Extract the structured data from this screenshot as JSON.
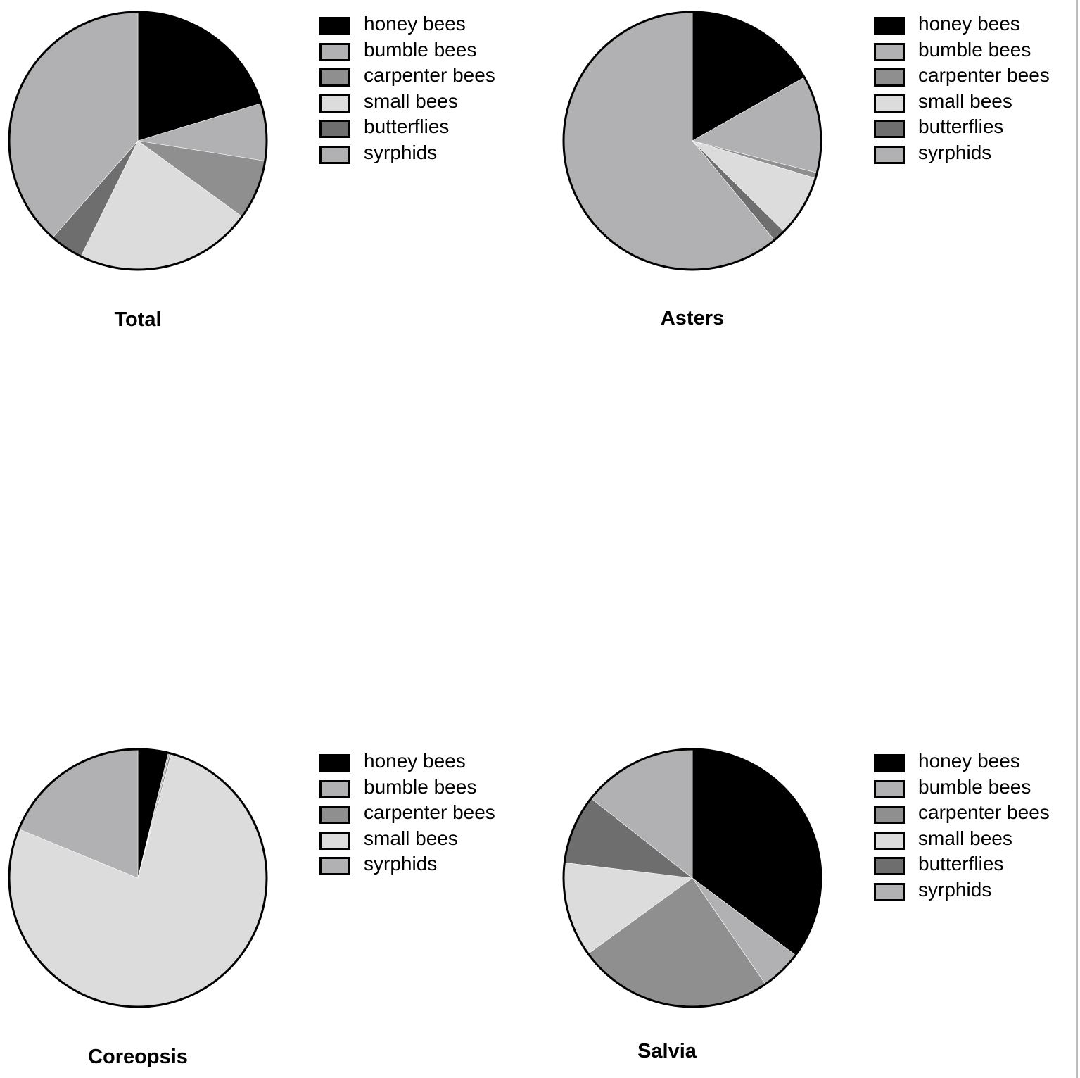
{
  "chart_data": [
    {
      "type": "pie",
      "title": "Total",
      "legend": [
        "honey bees",
        "bumble bees",
        "carpenter bees",
        "small bees",
        "butterflies",
        "syrphids"
      ],
      "legend_colors": [
        "#000000",
        "#b1b1b4",
        "#8f8f8f",
        "#dcdcdc",
        "#6e6e6e",
        "#b1b1b4"
      ],
      "slices": [
        {
          "label": "honey bees",
          "value": 20.3,
          "color": "#000000"
        },
        {
          "label": "bumble bees",
          "value": 7.2,
          "color": "#b1b1b4"
        },
        {
          "label": "carpenter bees",
          "value": 7.5,
          "color": "#8f8f8f"
        },
        {
          "label": "small bees",
          "value": 22.3,
          "color": "#dcdcdc"
        },
        {
          "label": "butterflies",
          "value": 4.2,
          "color": "#6e6e6e"
        },
        {
          "label": "syrphids",
          "value": 38.5,
          "color": "#b1b1b4"
        }
      ]
    },
    {
      "type": "pie",
      "title": "Asters",
      "legend": [
        "honey bees",
        "bumble bees",
        "carpenter bees",
        "small bees",
        "butterflies",
        "syrphids"
      ],
      "legend_colors": [
        "#000000",
        "#b1b1b4",
        "#8f8f8f",
        "#dcdcdc",
        "#6e6e6e",
        "#b1b1b4"
      ],
      "slices": [
        {
          "label": "honey bees",
          "value": 16.8,
          "color": "#000000"
        },
        {
          "label": "bumble bees",
          "value": 12.2,
          "color": "#b1b1b4"
        },
        {
          "label": "carpenter bees",
          "value": 0.7,
          "color": "#8f8f8f"
        },
        {
          "label": "small bees",
          "value": 7.7,
          "color": "#dcdcdc"
        },
        {
          "label": "butterflies",
          "value": 1.6,
          "color": "#6e6e6e"
        },
        {
          "label": "syrphids",
          "value": 61.0,
          "color": "#b1b1b4"
        }
      ]
    },
    {
      "type": "pie",
      "title": "Coreopsis",
      "legend": [
        "honey bees",
        "bumble bees",
        "carpenter bees",
        "small bees",
        "syrphids"
      ],
      "legend_colors": [
        "#000000",
        "#b1b1b4",
        "#8f8f8f",
        "#dcdcdc",
        "#b1b1b4"
      ],
      "slices": [
        {
          "label": "honey bees",
          "value": 3.8,
          "color": "#000000"
        },
        {
          "label": "bumble bees",
          "value": 0.2,
          "color": "#b1b1b4"
        },
        {
          "label": "carpenter bees",
          "value": 0.2,
          "color": "#8f8f8f"
        },
        {
          "label": "small bees",
          "value": 77.0,
          "color": "#dcdcdc"
        },
        {
          "label": "syrphids",
          "value": 18.8,
          "color": "#b1b1b4"
        }
      ]
    },
    {
      "type": "pie",
      "title": "Salvia",
      "legend": [
        "honey bees",
        "bumble bees",
        "carpenter bees",
        "small bees",
        "butterflies",
        "syrphids"
      ],
      "legend_colors": [
        "#000000",
        "#b1b1b4",
        "#8f8f8f",
        "#dcdcdc",
        "#6e6e6e",
        "#b1b1b4"
      ],
      "slices": [
        {
          "label": "honey bees",
          "value": 35.2,
          "color": "#000000"
        },
        {
          "label": "bumble bees",
          "value": 5.2,
          "color": "#b1b1b4"
        },
        {
          "label": "carpenter bees",
          "value": 24.6,
          "color": "#8f8f8f"
        },
        {
          "label": "small bees",
          "value": 11.9,
          "color": "#dcdcdc"
        },
        {
          "label": "butterflies",
          "value": 8.7,
          "color": "#6e6e6e"
        },
        {
          "label": "syrphids",
          "value": 14.4,
          "color": "#b1b1b4"
        }
      ]
    }
  ]
}
